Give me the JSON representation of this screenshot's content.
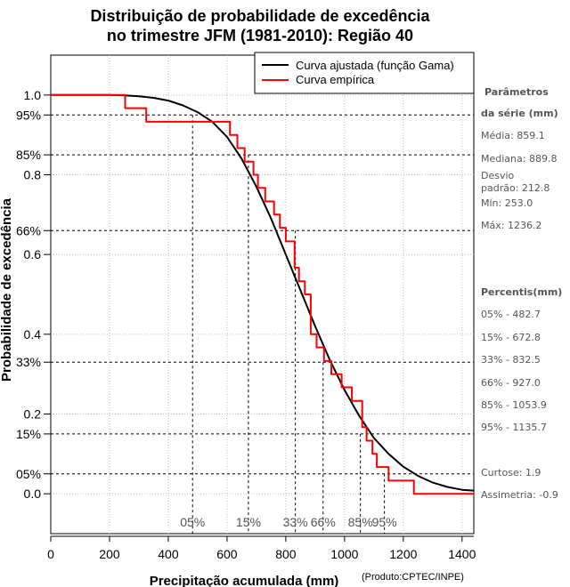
{
  "chart_data": {
    "type": "line",
    "title_line1": "Distribuição de probabilidade de excedência",
    "title_line2": "no trimestre JFM (1981-2010): Região 40",
    "xlabel": "Precipitação acumulada (mm)",
    "ylabel": "Probabilidade de excedência",
    "xlim": [
      0,
      1440
    ],
    "ylim": [
      -0.1,
      1.1
    ],
    "x_ticks": [
      0,
      200,
      400,
      600,
      800,
      1000,
      1200,
      1400
    ],
    "y_ticks": [
      {
        "value": 1.0,
        "label": "1.0"
      },
      {
        "value": 0.95,
        "label": "95%"
      },
      {
        "value": 0.85,
        "label": "85%"
      },
      {
        "value": 0.8,
        "label": "0.8"
      },
      {
        "value": 0.66,
        "label": "66%"
      },
      {
        "value": 0.6,
        "label": "0.6"
      },
      {
        "value": 0.4,
        "label": "0.4"
      },
      {
        "value": 0.33,
        "label": "33%"
      },
      {
        "value": 0.2,
        "label": "0.2"
      },
      {
        "value": 0.15,
        "label": "15%"
      },
      {
        "value": 0.05,
        "label": "05%"
      },
      {
        "value": 0.0,
        "label": "0.0"
      }
    ],
    "grid": true,
    "legend_position": "top-right",
    "series": [
      {
        "name": "Curva ajustada (função Gama)",
        "color": "#000000",
        "x": [
          0,
          200,
          250,
          300,
          350,
          400,
          450,
          500,
          550,
          600,
          650,
          700,
          750,
          800,
          850,
          900,
          950,
          1000,
          1050,
          1100,
          1150,
          1200,
          1250,
          1300,
          1350,
          1400,
          1440
        ],
        "y": [
          1.0,
          1.0,
          0.999,
          0.997,
          0.993,
          0.986,
          0.974,
          0.957,
          0.933,
          0.895,
          0.84,
          0.77,
          0.69,
          0.6,
          0.51,
          0.42,
          0.335,
          0.26,
          0.195,
          0.14,
          0.1,
          0.068,
          0.045,
          0.028,
          0.017,
          0.01,
          0.008
        ]
      },
      {
        "name": "Curva empírica",
        "color": "#ff0000",
        "x": [
          0,
          253,
          253,
          325,
          325,
          610,
          610,
          635,
          635,
          660,
          660,
          690,
          690,
          705,
          705,
          730,
          730,
          760,
          760,
          780,
          780,
          800,
          800,
          830,
          830,
          845,
          845,
          865,
          865,
          885,
          885,
          905,
          905,
          930,
          930,
          955,
          955,
          990,
          990,
          1025,
          1025,
          1060,
          1060,
          1075,
          1075,
          1095,
          1095,
          1110,
          1110,
          1150,
          1150,
          1236,
          1236,
          1440
        ],
        "y": [
          1.0,
          1.0,
          0.967,
          0.967,
          0.933,
          0.933,
          0.9,
          0.9,
          0.867,
          0.867,
          0.833,
          0.833,
          0.8,
          0.8,
          0.767,
          0.767,
          0.733,
          0.733,
          0.7,
          0.7,
          0.667,
          0.667,
          0.633,
          0.633,
          0.567,
          0.567,
          0.533,
          0.533,
          0.5,
          0.5,
          0.4,
          0.4,
          0.367,
          0.367,
          0.333,
          0.333,
          0.3,
          0.3,
          0.267,
          0.267,
          0.233,
          0.233,
          0.167,
          0.167,
          0.133,
          0.133,
          0.1,
          0.1,
          0.067,
          0.067,
          0.033,
          0.033,
          0.0,
          0.0
        ]
      }
    ],
    "percentile_markers": [
      {
        "label": "05%",
        "x": 482.7,
        "p": 0.95
      },
      {
        "label": "15%",
        "x": 672.8,
        "p": 0.85
      },
      {
        "label": "33%",
        "x": 832.5,
        "p": 0.66
      },
      {
        "label": "66%",
        "x": 927.0,
        "p": 0.33
      },
      {
        "label": "85%",
        "x": 1053.9,
        "p": 0.15
      },
      {
        "label": "95%",
        "x": 1135.7,
        "p": 0.05
      }
    ]
  },
  "side_panel": {
    "params_head_line1": "Parâmetros",
    "params_head_line2": "da série (mm)",
    "media": "Média: 859.1",
    "mediana": "Mediana: 889.8",
    "desvio_line1": "Desvio",
    "desvio_line2": "padrão: 212.8",
    "min": "Mín: 253.0",
    "max": "Máx: 1236.2",
    "percentis_head": "Percentis(mm)",
    "p05": "05% - 482.7",
    "p15": "15% - 672.8",
    "p33": "33% - 832.5",
    "p66": "66% - 927.0",
    "p85": "85% - 1053.9",
    "p95": "95% - 1135.7",
    "curtose": "Curtose: 1.9",
    "assimetria": "Assimetria: -0.9"
  },
  "credit": "(Produto:CPTEC/INPE)",
  "colors": {
    "fitted": "#000000",
    "empirical": "#ff0000",
    "grid": "#bbbbbb",
    "side_text": "#555555"
  }
}
